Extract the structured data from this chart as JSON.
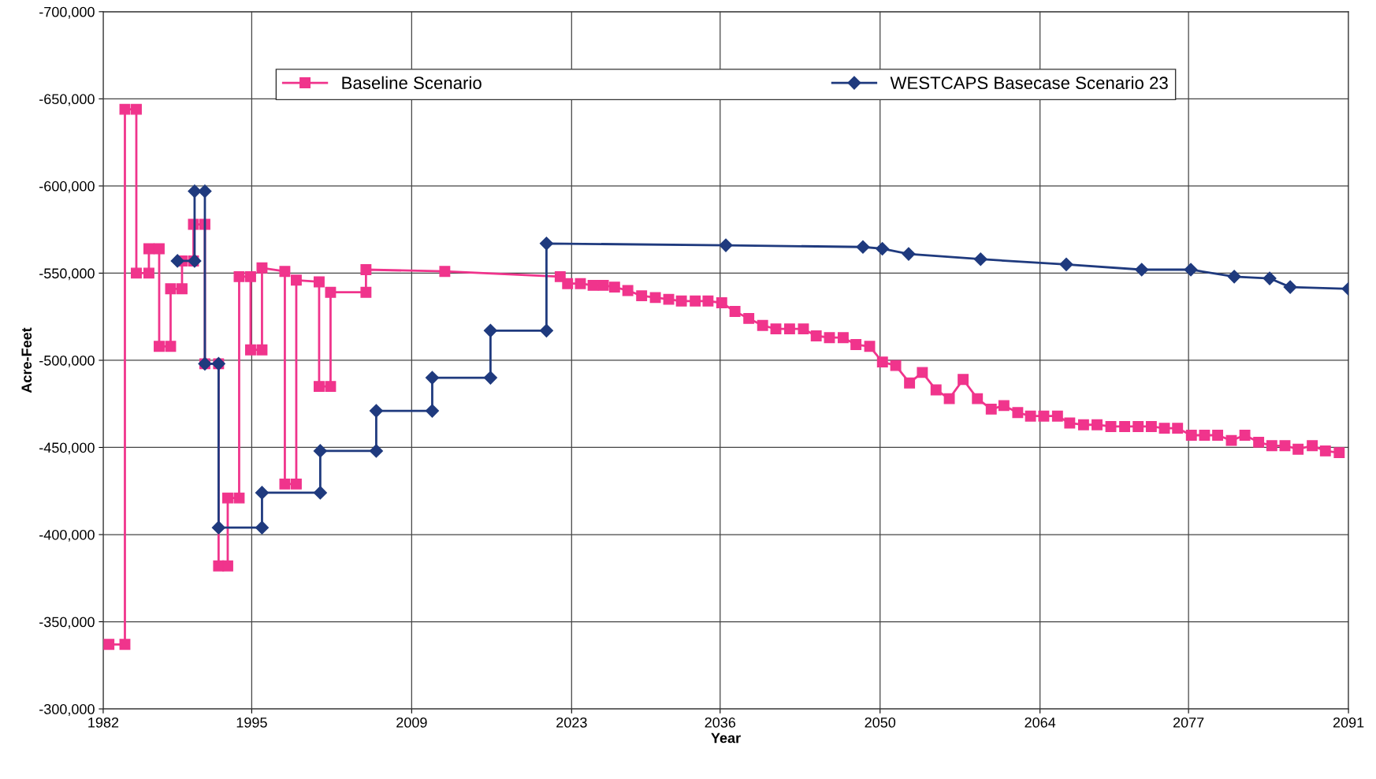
{
  "chart_data": {
    "type": "line",
    "xlabel": "Year",
    "ylabel": "Acre-Feet",
    "xlim": [
      1982,
      2091
    ],
    "xticks": [
      1982,
      1995,
      2009,
      2023,
      2036,
      2050,
      2064,
      2077,
      2091
    ],
    "ylim": [
      -300000,
      -700000
    ],
    "yticks": [
      {
        "value": -700000,
        "label": "-700,000"
      },
      {
        "value": -650000,
        "label": "-650,000"
      },
      {
        "value": -600000,
        "label": "-600,000"
      },
      {
        "value": -550000,
        "label": "-550,000"
      },
      {
        "value": -500000,
        "label": "-500,000"
      },
      {
        "value": -450000,
        "label": "-450,000"
      },
      {
        "value": -400000,
        "label": "-400,000"
      },
      {
        "value": -350000,
        "label": "-350,000"
      },
      {
        "value": -300000,
        "label": "-300,000"
      }
    ],
    "grid": true,
    "legend": "top",
    "series": [
      {
        "name": "Baseline Scenario",
        "color": "#f0348c",
        "marker": "square",
        "x": [
          1982.5,
          1983.9,
          1983.9,
          1984.9,
          1984.9,
          1986.0,
          1986.0,
          1986.9,
          1986.9,
          1987.9,
          1987.9,
          1988.9,
          1988.9,
          1989.9,
          1989.9,
          1990.9,
          1990.9,
          1992.1,
          1992.1,
          1992.9,
          1992.9,
          1993.9,
          1993.9,
          1994.9,
          1994.9,
          1995.9,
          1995.9,
          1997.9,
          1997.9,
          1998.9,
          1998.9,
          2000.9,
          2000.9,
          2001.9,
          2001.9,
          2005.0,
          2005.0,
          2011.9,
          2022.0,
          2022.65,
          2023.77,
          2024.88,
          2025.78,
          2026.76,
          2027.92,
          2029.13,
          2030.33,
          2031.5,
          2032.61,
          2033.82,
          2034.94,
          2036.14,
          2037.3,
          2038.51,
          2039.72,
          2040.88,
          2042.08,
          2043.29,
          2044.41,
          2045.57,
          2046.77,
          2047.89,
          2049.09,
          2050.21,
          2051.37,
          2052.58,
          2053.7,
          2054.9,
          2056.06,
          2057.27,
          2058.52,
          2059.73,
          2060.84,
          2062.05,
          2063.17,
          2064.33,
          2065.53,
          2066.6,
          2067.81,
          2068.99,
          2070.2,
          2071.41,
          2072.59,
          2073.74,
          2074.89,
          2076.04,
          2077.25,
          2078.4,
          2079.55,
          2080.75,
          2081.93,
          2083.14,
          2084.29,
          2085.44,
          2086.59,
          2087.83,
          2088.98,
          2090.19
        ],
        "values": [
          -337000,
          -337000,
          -644000,
          -644000,
          -550000,
          -550000,
          -564000,
          -564000,
          -508000,
          -508000,
          -541000,
          -541000,
          -557000,
          -557000,
          -578000,
          -578000,
          -498000,
          -498000,
          -382000,
          -382000,
          -421000,
          -421000,
          -548000,
          -548000,
          -506000,
          -506000,
          -553000,
          -551000,
          -429000,
          -429000,
          -546000,
          -545000,
          -485000,
          -485000,
          -539000,
          -539000,
          -552000,
          -551000,
          -548000,
          -544000,
          -544000,
          -543000,
          -543000,
          -542000,
          -540000,
          -537000,
          -536000,
          -535000,
          -534000,
          -534000,
          -534000,
          -533000,
          -528000,
          -524000,
          -520000,
          -518000,
          -518000,
          -518000,
          -514000,
          -513000,
          -513000,
          -509000,
          -508000,
          -499000,
          -497000,
          -487000,
          -493000,
          -483000,
          -478000,
          -489000,
          -478000,
          -472000,
          -474000,
          -470000,
          -468000,
          -468000,
          -468000,
          -464000,
          -463000,
          -463000,
          -462000,
          -462000,
          -462000,
          -462000,
          -461000,
          -461000,
          -457000,
          -457000,
          -457000,
          -454000,
          -457000,
          -453000,
          -451000,
          -451000,
          -449000,
          -451000,
          -448000,
          -447000
        ]
      },
      {
        "name": "WESTCAPS Basecase Scenario 23",
        "color": "#1f3a7e",
        "marker": "diamond",
        "x": [
          1988.5,
          1990.0,
          1990.0,
          1990.9,
          1990.9,
          1992.1,
          1992.1,
          1995.9,
          1995.9,
          2001.0,
          2001.0,
          2005.9,
          2005.9,
          2010.8,
          2010.8,
          2015.9,
          2015.9,
          2020.8,
          2020.8,
          2036.5,
          2048.5,
          2050.2,
          2052.5,
          2058.8,
          2066.3,
          2072.9,
          2077.2,
          2081.0,
          2084.1,
          2085.9,
          2091.0
        ],
        "values": [
          -557000,
          -557000,
          -597000,
          -597000,
          -498000,
          -498000,
          -404000,
          -404000,
          -424000,
          -424000,
          -448000,
          -448000,
          -471000,
          -471000,
          -490000,
          -490000,
          -517000,
          -517000,
          -567000,
          -566000,
          -565000,
          -564000,
          -561000,
          -558000,
          -555000,
          -552000,
          -552000,
          -548000,
          -547000,
          -542000,
          -541000
        ]
      }
    ]
  }
}
